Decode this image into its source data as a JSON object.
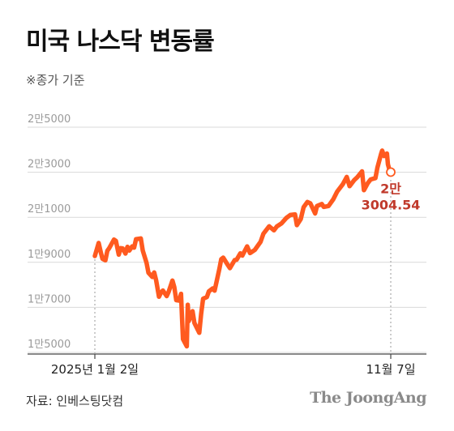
{
  "header": {
    "title": "미국 나스닥 변동률",
    "subtitle": "※종가 기준"
  },
  "footer": {
    "source": "자료: 인베스팅닷컴",
    "logo": "The JoongAng"
  },
  "colors": {
    "line": "#ff5a1f",
    "annotation": "#c0392b",
    "grid": "#d9d9d9"
  },
  "chart_data": {
    "type": "line",
    "title": "미국 나스닥 변동률",
    "subtitle": "※종가 기준",
    "xlabel": "",
    "ylabel": "",
    "ylim": [
      14900,
      26000
    ],
    "y_ticks": [
      {
        "value": 15000,
        "label": "1만5000"
      },
      {
        "value": 17000,
        "label": "1만7000"
      },
      {
        "value": 19000,
        "label": "1만9000"
      },
      {
        "value": 21000,
        "label": "2만1000"
      },
      {
        "value": 23000,
        "label": "2만3000"
      },
      {
        "value": 25000,
        "label": "2만5000"
      }
    ],
    "x_ticks": [
      {
        "date": "2025-01-02",
        "label": "2025년 1월 2일"
      },
      {
        "date": "2025-11-07",
        "label": "11월 7일"
      }
    ],
    "grid": true,
    "series": [
      {
        "values": [
          [
            "2025-01-02",
            19280
          ],
          [
            "2025-01-06",
            19860
          ],
          [
            "2025-01-08",
            19480
          ],
          [
            "2025-01-10",
            19160
          ],
          [
            "2025-01-13",
            19090
          ],
          [
            "2025-01-15",
            19510
          ],
          [
            "2025-01-17",
            19630
          ],
          [
            "2025-01-22",
            20010
          ],
          [
            "2025-01-24",
            19950
          ],
          [
            "2025-01-27",
            19340
          ],
          [
            "2025-01-29",
            19630
          ],
          [
            "2025-01-31",
            19620
          ],
          [
            "2025-02-03",
            19390
          ],
          [
            "2025-02-05",
            19690
          ],
          [
            "2025-02-07",
            19520
          ],
          [
            "2025-02-10",
            19710
          ],
          [
            "2025-02-12",
            19650
          ],
          [
            "2025-02-14",
            20030
          ],
          [
            "2025-02-19",
            20060
          ],
          [
            "2025-02-21",
            19520
          ],
          [
            "2025-02-25",
            18970
          ],
          [
            "2025-02-27",
            18540
          ],
          [
            "2025-03-03",
            18350
          ],
          [
            "2025-03-05",
            18550
          ],
          [
            "2025-03-07",
            18200
          ],
          [
            "2025-03-10",
            17470
          ],
          [
            "2025-03-12",
            17650
          ],
          [
            "2025-03-14",
            17750
          ],
          [
            "2025-03-18",
            17500
          ],
          [
            "2025-03-20",
            17690
          ],
          [
            "2025-03-24",
            18190
          ],
          [
            "2025-03-26",
            17900
          ],
          [
            "2025-03-28",
            17320
          ],
          [
            "2025-03-31",
            17300
          ],
          [
            "2025-04-02",
            17600
          ],
          [
            "2025-04-03",
            16550
          ],
          [
            "2025-04-04",
            15590
          ],
          [
            "2025-04-08",
            15270
          ],
          [
            "2025-04-09",
            17120
          ],
          [
            "2025-04-10",
            16390
          ],
          [
            "2025-04-14",
            16830
          ],
          [
            "2025-04-16",
            16310
          ],
          [
            "2025-04-21",
            15870
          ],
          [
            "2025-04-23",
            16710
          ],
          [
            "2025-04-25",
            17380
          ],
          [
            "2025-04-29",
            17460
          ],
          [
            "2025-05-01",
            17710
          ],
          [
            "2025-05-05",
            17840
          ],
          [
            "2025-05-07",
            17740
          ],
          [
            "2025-05-12",
            18710
          ],
          [
            "2025-05-14",
            19140
          ],
          [
            "2025-05-16",
            19210
          ],
          [
            "2025-05-21",
            18870
          ],
          [
            "2025-05-23",
            18740
          ],
          [
            "2025-05-28",
            19100
          ],
          [
            "2025-05-30",
            19110
          ],
          [
            "2025-06-03",
            19400
          ],
          [
            "2025-06-05",
            19300
          ],
          [
            "2025-06-10",
            19710
          ],
          [
            "2025-06-13",
            19410
          ],
          [
            "2025-06-18",
            19550
          ],
          [
            "2025-06-24",
            19910
          ],
          [
            "2025-06-27",
            20270
          ],
          [
            "2025-07-03",
            20600
          ],
          [
            "2025-07-08",
            20420
          ],
          [
            "2025-07-11",
            20590
          ],
          [
            "2025-07-16",
            20730
          ],
          [
            "2025-07-21",
            20970
          ],
          [
            "2025-07-25",
            21100
          ],
          [
            "2025-07-30",
            21130
          ],
          [
            "2025-08-01",
            20650
          ],
          [
            "2025-08-05",
            20920
          ],
          [
            "2025-08-08",
            21450
          ],
          [
            "2025-08-12",
            21680
          ],
          [
            "2025-08-15",
            21620
          ],
          [
            "2025-08-20",
            21170
          ],
          [
            "2025-08-22",
            21500
          ],
          [
            "2025-08-27",
            21590
          ],
          [
            "2025-08-29",
            21460
          ],
          [
            "2025-09-03",
            21500
          ],
          [
            "2025-09-08",
            21800
          ],
          [
            "2025-09-12",
            22140
          ],
          [
            "2025-09-18",
            22470
          ],
          [
            "2025-09-22",
            22790
          ],
          [
            "2025-09-25",
            22380
          ],
          [
            "2025-09-30",
            22660
          ],
          [
            "2025-10-03",
            22780
          ],
          [
            "2025-10-08",
            23040
          ],
          [
            "2025-10-10",
            22200
          ],
          [
            "2025-10-14",
            22520
          ],
          [
            "2025-10-17",
            22680
          ],
          [
            "2025-10-22",
            22740
          ],
          [
            "2025-10-24",
            23200
          ],
          [
            "2025-10-28",
            23830
          ],
          [
            "2025-10-29",
            23960
          ],
          [
            "2025-10-31",
            23720
          ],
          [
            "2025-11-03",
            23830
          ],
          [
            "2025-11-04",
            23350
          ],
          [
            "2025-11-06",
            23050
          ],
          [
            "2025-11-07",
            23004.54
          ]
        ]
      }
    ],
    "annotations": [
      {
        "date": "2025-11-07",
        "value": 23004.54,
        "lines": [
          "2만",
          "3004.54"
        ]
      }
    ]
  }
}
